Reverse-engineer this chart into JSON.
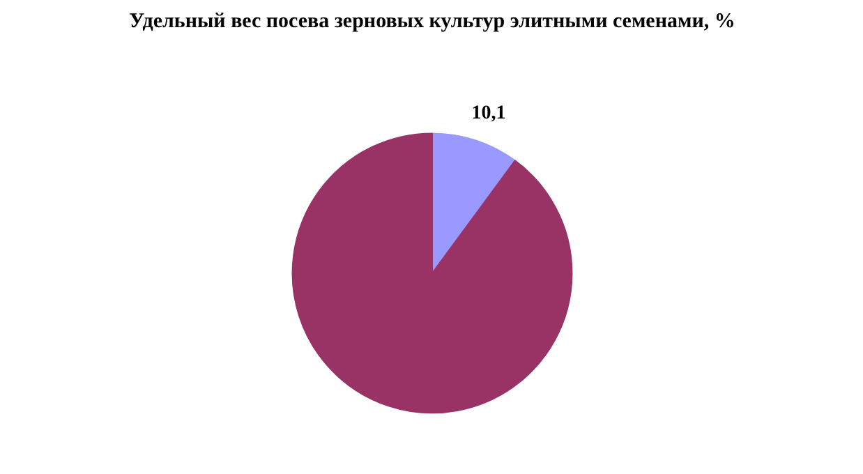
{
  "chart_data": {
    "type": "pie",
    "title": "Удельный вес посева зерновых культур элитными семенами, %",
    "categories": [
      null,
      null
    ],
    "values": [
      10.1,
      89.9
    ],
    "colors": [
      "#9999ff",
      "#993366"
    ],
    "value_labels": [
      "10,1",
      null
    ]
  }
}
